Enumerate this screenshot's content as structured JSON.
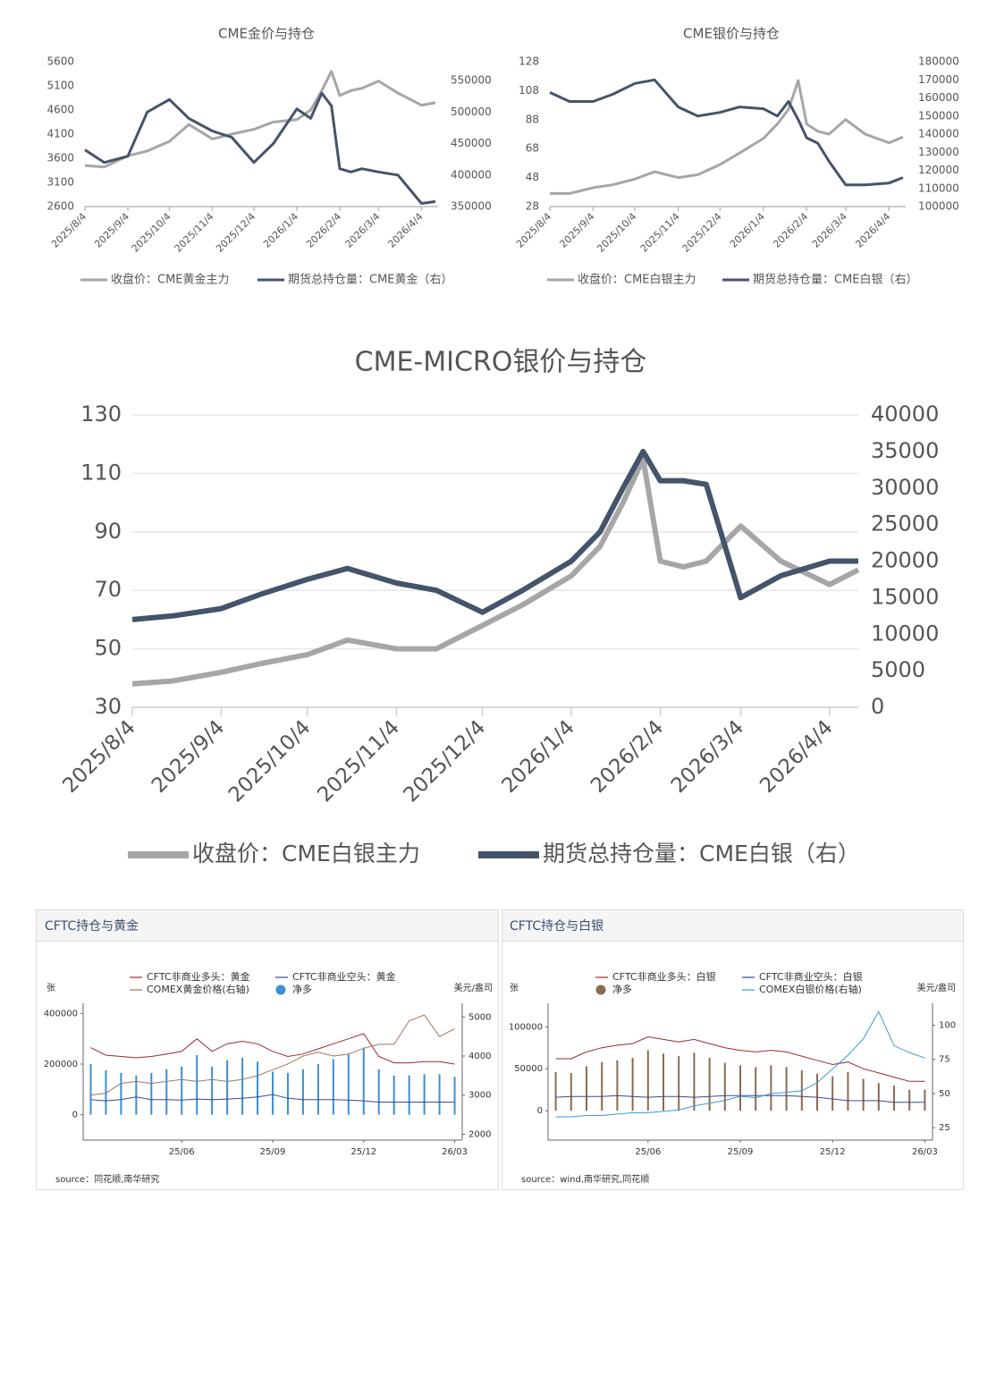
{
  "chart_data": [
    {
      "type": "line",
      "title": "CME金价与持仓",
      "x": [
        "2025/8/4",
        "2025/8/18",
        "2025/9/4",
        "2025/9/18",
        "2025/10/4",
        "2025/10/18",
        "2025/11/4",
        "2025/11/18",
        "2025/12/4",
        "2025/12/18",
        "2026/1/4",
        "2026/1/14",
        "2026/1/22",
        "2026/1/29",
        "2026/2/4",
        "2026/2/12",
        "2026/2/20",
        "2026/3/4",
        "2026/3/18",
        "2026/4/4",
        "2026/4/14"
      ],
      "xlim": [
        "2025/8/4",
        "2026/4/16"
      ],
      "xticks": [
        "2025/8/4",
        "2025/9/4",
        "2025/10/4",
        "2025/11/4",
        "2025/12/4",
        "2026/1/4",
        "2026/2/4",
        "2026/3/4",
        "2026/4/4"
      ],
      "ylim": [
        2600,
        5600
      ],
      "yticks": [
        2600,
        3100,
        3600,
        4100,
        4600,
        5100,
        5600
      ],
      "y2lim": [
        350000,
        580000
      ],
      "y2ticks": [
        350000,
        400000,
        450000,
        500000,
        550000
      ],
      "grid": false,
      "series": [
        {
          "name": "收盘价：CME黄金主力",
          "color": "#a6a6a6",
          "values": [
            3450,
            3420,
            3650,
            3750,
            3950,
            4300,
            4000,
            4100,
            4200,
            4350,
            4400,
            4600,
            5000,
            5400,
            4900,
            5000,
            5050,
            5200,
            4950,
            4700,
            4750
          ]
        },
        {
          "name": "期货总持仓量：CME黄金（右）",
          "color": "#44546a",
          "axis": "y2",
          "values": [
            440000,
            420000,
            430000,
            500000,
            520000,
            490000,
            470000,
            460000,
            420000,
            450000,
            505000,
            490000,
            530000,
            510000,
            410000,
            405000,
            410000,
            405000,
            400000,
            355000,
            358000
          ]
        }
      ]
    },
    {
      "type": "line",
      "title": "CME银价与持仓",
      "x": [
        "2025/8/4",
        "2025/8/18",
        "2025/9/4",
        "2025/9/18",
        "2025/10/4",
        "2025/10/18",
        "2025/11/4",
        "2025/11/18",
        "2025/12/4",
        "2025/12/18",
        "2026/1/4",
        "2026/1/14",
        "2026/1/22",
        "2026/1/29",
        "2026/2/4",
        "2026/2/12",
        "2026/2/20",
        "2026/3/4",
        "2026/3/18",
        "2026/4/4",
        "2026/4/14"
      ],
      "xlim": [
        "2025/8/4",
        "2026/4/16"
      ],
      "xticks": [
        "2025/8/4",
        "2025/9/4",
        "2025/10/4",
        "2025/11/4",
        "2025/12/4",
        "2026/1/4",
        "2026/2/4",
        "2026/3/4",
        "2026/4/4"
      ],
      "ylim": [
        28,
        128
      ],
      "yticks": [
        28,
        48,
        68,
        88,
        108,
        128
      ],
      "y2lim": [
        100000,
        180000
      ],
      "y2ticks": [
        100000,
        110000,
        120000,
        130000,
        140000,
        150000,
        160000,
        170000,
        180000
      ],
      "grid": false,
      "series": [
        {
          "name": "收盘价：CME白银主力",
          "color": "#a6a6a6",
          "values": [
            37,
            37,
            41,
            43,
            47,
            52,
            48,
            50,
            57,
            65,
            75,
            85,
            95,
            115,
            85,
            80,
            78,
            88,
            78,
            72,
            76
          ]
        },
        {
          "name": "期货总持仓量：CME白银（右）",
          "color": "#44546a",
          "axis": "y2",
          "values": [
            163000,
            158000,
            158000,
            162000,
            168000,
            170000,
            155000,
            150000,
            152000,
            155000,
            154000,
            150000,
            158000,
            148000,
            138000,
            135000,
            125000,
            112000,
            112000,
            113000,
            116000
          ]
        }
      ]
    },
    {
      "type": "line",
      "title": "CME-MICRO银价与持仓",
      "x": [
        "2025/8/4",
        "2025/8/18",
        "2025/9/4",
        "2025/9/18",
        "2025/10/4",
        "2025/10/18",
        "2025/11/4",
        "2025/11/18",
        "2025/12/4",
        "2025/12/18",
        "2026/1/4",
        "2026/1/14",
        "2026/1/22",
        "2026/1/29",
        "2026/2/4",
        "2026/2/12",
        "2026/2/20",
        "2026/3/4",
        "2026/3/18",
        "2026/4/4",
        "2026/4/14"
      ],
      "xlim": [
        "2025/8/4",
        "2026/4/14"
      ],
      "xticks": [
        "2025/8/4",
        "2025/9/4",
        "2025/10/4",
        "2025/11/4",
        "2025/12/4",
        "2026/1/4",
        "2026/2/4",
        "2026/3/4",
        "2026/4/4"
      ],
      "ylim": [
        30,
        130
      ],
      "yticks": [
        30,
        50,
        70,
        90,
        110,
        130
      ],
      "y2lim": [
        0,
        40000
      ],
      "y2ticks": [
        0,
        5000,
        10000,
        15000,
        20000,
        25000,
        30000,
        35000,
        40000
      ],
      "grid": true,
      "series": [
        {
          "name": "收盘价：CME白银主力",
          "color": "#a6a6a6",
          "values": [
            38,
            39,
            42,
            45,
            48,
            53,
            50,
            50,
            58,
            65,
            75,
            85,
            100,
            115,
            80,
            78,
            80,
            92,
            80,
            72,
            77
          ]
        },
        {
          "name": "期货总持仓量：CME白银（右）",
          "color": "#44546a",
          "axis": "y2",
          "values": [
            12000,
            12500,
            13500,
            15500,
            17500,
            19000,
            17000,
            16000,
            13000,
            16000,
            20000,
            24000,
            30000,
            35000,
            31000,
            31000,
            30500,
            15000,
            18000,
            20000,
            20000
          ]
        }
      ]
    },
    {
      "type": "combo",
      "title": "CFTC持仓与黄金",
      "y_label": "张",
      "y2_label": "美元/盎司",
      "source": "source：同花顺,南华研究",
      "categories": [
        null,
        null,
        null,
        null,
        null,
        null,
        "25/06",
        null,
        null,
        null,
        null,
        null,
        "25/09",
        null,
        null,
        null,
        null,
        null,
        "25/12",
        null,
        null,
        null,
        null,
        null,
        "26/03"
      ],
      "ylim": [
        -100000,
        440000
      ],
      "yticks": [
        0,
        200000,
        400000
      ],
      "y2lim": [
        1850,
        5350
      ],
      "y2ticks": [
        2000,
        3000,
        4000,
        5000
      ],
      "series": [
        {
          "name": "CFTC非商业多头：黄金",
          "type": "line",
          "color": "#9b2a2a",
          "values": [
            265000,
            235000,
            230000,
            225000,
            230000,
            240000,
            250000,
            300000,
            250000,
            280000,
            290000,
            280000,
            250000,
            230000,
            240000,
            260000,
            280000,
            300000,
            320000,
            230000,
            205000,
            205000,
            210000,
            210000,
            200000
          ]
        },
        {
          "name": "CFTC非商业空头：黄金",
          "type": "line",
          "color": "#3a4a8c",
          "values": [
            60000,
            55000,
            60000,
            70000,
            60000,
            60000,
            58000,
            62000,
            60000,
            62000,
            65000,
            70000,
            80000,
            65000,
            60000,
            60000,
            60000,
            58000,
            55000,
            50000,
            50000,
            50000,
            50000,
            50000,
            50000
          ]
        },
        {
          "name": "COMEX黄金价格(右轴)",
          "type": "line",
          "color": "#a0785a",
          "axis": "y2",
          "values": [
            3000,
            3050,
            3300,
            3350,
            3300,
            3350,
            3400,
            3350,
            3400,
            3350,
            3400,
            3500,
            3650,
            3800,
            4000,
            4100,
            4000,
            4050,
            4200,
            4300,
            4300,
            4900,
            5050,
            4500,
            4700
          ]
        },
        {
          "name": "净多",
          "type": "bar",
          "color": "#3b8fd6",
          "values": [
            200000,
            175000,
            165000,
            155000,
            165000,
            180000,
            190000,
            235000,
            190000,
            215000,
            225000,
            210000,
            170000,
            165000,
            180000,
            200000,
            220000,
            240000,
            265000,
            180000,
            155000,
            155000,
            160000,
            160000,
            150000
          ]
        }
      ]
    },
    {
      "type": "combo",
      "title": "CFTC持仓与白银",
      "y_label": "张",
      "y2_label": "美元/盎司",
      "source": "source：wind,南华研究,同花顺",
      "categories": [
        null,
        null,
        null,
        null,
        null,
        null,
        "25/06",
        null,
        null,
        null,
        null,
        null,
        "25/09",
        null,
        null,
        null,
        null,
        null,
        "25/12",
        null,
        null,
        null,
        null,
        null,
        "26/03"
      ],
      "ylim": [
        -35000,
        128000
      ],
      "yticks": [
        0,
        50000,
        100000
      ],
      "y2lim": [
        16,
        116
      ],
      "y2ticks": [
        25,
        50,
        75,
        100
      ],
      "series": [
        {
          "name": "CFTC非商业多头：白银",
          "type": "line",
          "color": "#9b2a2a",
          "values": [
            62000,
            62000,
            70000,
            75000,
            78000,
            80000,
            88000,
            85000,
            82000,
            85000,
            80000,
            75000,
            72000,
            70000,
            72000,
            70000,
            65000,
            60000,
            55000,
            58000,
            50000,
            45000,
            40000,
            35000,
            35000
          ]
        },
        {
          "name": "CFTC非商业空头：白银",
          "type": "line",
          "color": "#3a4a8c",
          "values": [
            16000,
            17000,
            17000,
            17000,
            18000,
            17000,
            16000,
            17000,
            17000,
            16000,
            17000,
            18000,
            18000,
            18000,
            18000,
            18000,
            17000,
            16000,
            14000,
            12000,
            12000,
            12000,
            10000,
            10000,
            10000
          ]
        },
        {
          "name": "净多",
          "type": "bar",
          "color": "#8b6b50",
          "values": [
            46000,
            45000,
            53000,
            58000,
            60000,
            63000,
            72000,
            68000,
            65000,
            69000,
            63000,
            57000,
            54000,
            52000,
            54000,
            52000,
            48000,
            44000,
            41000,
            46000,
            38000,
            33000,
            30000,
            25000,
            25000
          ]
        },
        {
          "name": "COMEX白银价格(右轴)",
          "type": "line",
          "color": "#3b9ad9",
          "axis": "y2",
          "values": [
            33,
            33,
            34,
            34,
            35,
            36,
            36,
            37,
            38,
            41,
            43,
            45,
            48,
            47,
            50,
            51,
            52,
            58,
            68,
            78,
            90,
            110,
            85,
            80,
            76
          ]
        }
      ]
    }
  ]
}
